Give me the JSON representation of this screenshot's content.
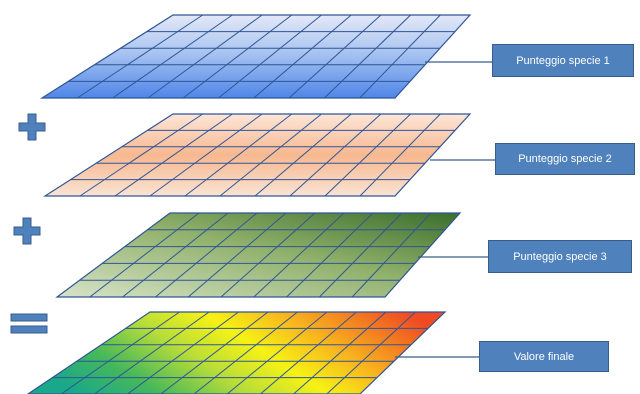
{
  "layers": [
    {
      "label": "Punteggio specie 1",
      "palette": "blue"
    },
    {
      "label": "Punteggio specie 2",
      "palette": "peach"
    },
    {
      "label": "Punteggio specie 3",
      "palette": "green"
    },
    {
      "label": "Valore finale",
      "palette": "spectrum"
    }
  ],
  "operators": [
    "plus",
    "plus",
    "equals"
  ],
  "colors": {
    "label_fill": "#4f81bd",
    "label_border": "#385d8a",
    "label_text": "#ffffff",
    "operator": "#4f81bd",
    "grid_line": "#2f5597"
  },
  "grid": {
    "columns": 10,
    "rows": 5
  }
}
